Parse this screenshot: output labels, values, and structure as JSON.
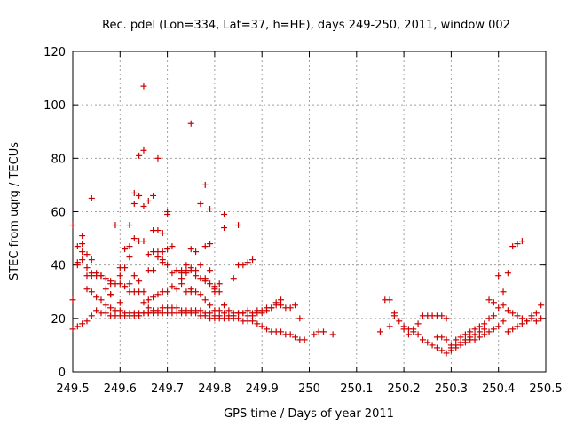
{
  "chart_data": {
    "type": "scatter",
    "title": "Rec. pdel (Lon=334, Lat=37, h=HE), days 249-250, 2011, window 002",
    "xlabel": "GPS time / Days of year 2011",
    "ylabel": "STEC from uqrg / TECUs",
    "xlim": [
      249.5,
      250.5
    ],
    "ylim": [
      0,
      120
    ],
    "xticks": [
      "249.5",
      "249.6",
      "249.7",
      "249.8",
      "249.9",
      "250",
      "250.1",
      "250.2",
      "250.3",
      "250.4",
      "250.5"
    ],
    "yticks": [
      "0",
      "20",
      "40",
      "60",
      "80",
      "100",
      "120"
    ],
    "grid": true,
    "marker_color": "#cc0000",
    "series": [
      {
        "x": [
          249.5,
          249.51,
          249.52,
          249.53,
          249.54,
          249.55,
          249.56,
          249.57,
          249.58,
          249.59,
          249.6,
          249.61,
          249.62,
          249.63,
          249.64,
          249.65,
          249.66,
          249.67,
          249.68,
          249.69,
          249.7,
          249.71,
          249.72,
          249.73,
          249.74,
          249.75,
          249.76,
          249.77,
          249.78,
          249.79,
          249.8,
          249.81,
          249.82,
          249.83,
          249.84,
          249.85,
          249.86,
          249.87,
          249.88,
          249.89,
          249.9,
          249.91,
          249.92,
          249.93,
          249.94,
          249.95,
          249.96,
          249.97,
          249.98,
          249.99,
          249.5,
          249.51,
          249.52,
          249.53,
          249.54,
          249.55,
          249.56,
          249.57,
          249.58,
          249.59,
          249.6,
          249.61,
          249.62,
          249.63,
          249.64,
          249.65,
          249.66,
          249.67,
          249.68,
          249.69,
          249.7,
          249.71,
          249.72,
          249.73,
          249.74,
          249.75,
          249.76,
          249.77,
          249.78,
          249.79,
          249.8,
          249.81,
          249.82,
          249.83,
          249.84,
          249.85,
          249.86,
          249.87,
          249.88,
          249.89,
          249.9,
          249.91,
          249.92,
          249.93,
          249.94,
          249.95,
          249.96,
          249.97,
          249.98,
          249.51,
          249.52,
          249.53,
          249.54,
          249.55,
          249.56,
          249.57,
          249.58,
          249.59,
          249.6,
          249.61,
          249.62,
          249.63,
          249.64,
          249.65,
          249.66,
          249.67,
          249.68,
          249.69,
          249.7,
          249.71,
          249.72,
          249.73,
          249.74,
          249.75,
          249.76,
          249.77,
          249.78,
          249.79,
          249.8,
          249.81,
          249.82,
          249.83,
          249.84,
          249.85,
          249.86,
          249.87,
          249.88,
          249.89,
          249.9,
          249.91,
          249.92,
          249.93,
          249.94,
          249.52,
          249.54,
          249.57,
          249.59,
          249.61,
          249.62,
          249.63,
          249.64,
          249.65,
          249.66,
          249.67,
          249.68,
          249.69,
          249.7,
          249.71,
          249.72,
          249.73,
          249.74,
          249.75,
          249.76,
          249.77,
          249.78,
          249.79,
          249.8,
          249.81,
          249.82,
          249.5,
          249.51,
          249.52,
          249.53,
          249.54,
          249.56,
          249.58,
          249.6,
          249.61,
          249.62,
          249.63,
          249.64,
          249.65,
          249.66,
          249.67,
          249.68,
          249.69,
          249.7,
          249.71,
          249.72,
          249.73,
          249.74,
          249.75,
          249.76,
          249.77,
          249.78,
          249.79,
          249.8,
          249.81,
          249.82,
          249.84,
          249.85,
          249.86,
          249.87,
          249.88,
          249.53,
          249.55,
          249.58,
          249.6,
          249.62,
          249.63,
          249.64,
          249.65,
          249.66,
          249.67,
          249.68,
          249.69,
          249.7,
          249.72,
          249.73,
          249.74,
          249.75,
          249.76,
          249.78,
          249.79,
          249.8,
          249.54,
          249.58,
          249.6,
          249.62,
          249.63,
          249.64,
          249.65,
          249.66,
          249.67,
          249.68,
          249.69,
          249.7,
          249.75,
          249.77,
          249.78,
          249.79,
          249.82,
          249.85,
          249.65,
          249.75,
          250.01,
          250.02,
          250.03,
          250.05,
          250.15,
          250.16,
          250.17,
          250.18,
          250.19,
          250.2,
          250.21,
          250.22,
          250.23,
          250.24,
          250.25,
          250.26,
          250.27,
          250.28,
          250.29,
          250.3,
          250.31,
          250.32,
          250.33,
          250.34,
          250.35,
          250.36,
          250.37,
          250.38,
          250.39,
          250.4,
          250.41,
          250.42,
          250.43,
          250.44,
          250.45,
          250.46,
          250.47,
          250.48,
          250.49,
          250.2,
          250.21,
          250.22,
          250.23,
          250.24,
          250.25,
          250.26,
          250.27,
          250.28,
          250.29,
          250.3,
          250.31,
          250.32,
          250.33,
          250.34,
          250.35,
          250.36,
          250.37,
          250.38,
          250.39,
          250.4,
          250.41,
          250.42,
          250.43,
          250.44,
          250.45,
          250.46,
          250.47,
          250.48,
          250.49,
          250.17,
          250.18,
          250.27,
          250.28,
          250.29,
          250.3,
          250.31,
          250.32,
          250.33,
          250.34,
          250.35,
          250.36,
          250.37,
          250.38,
          250.39,
          250.4,
          250.41,
          250.42,
          250.43,
          250.44,
          250.45
        ],
        "y": [
          16,
          17,
          18,
          19,
          21,
          23,
          22,
          22,
          21,
          21,
          21,
          21,
          21,
          21,
          21,
          22,
          22,
          22,
          22,
          22,
          22,
          22,
          22,
          22,
          22,
          22,
          22,
          21,
          21,
          20,
          20,
          20,
          20,
          20,
          20,
          20,
          19,
          19,
          19,
          18,
          17,
          16,
          15,
          15,
          15,
          14,
          14,
          13,
          12,
          12,
          27,
          40,
          42,
          31,
          30,
          28,
          27,
          25,
          24,
          23,
          23,
          22,
          22,
          22,
          22,
          22,
          22,
          23,
          23,
          24,
          24,
          24,
          24,
          23,
          23,
          23,
          23,
          23,
          22,
          22,
          21,
          21,
          22,
          21,
          21,
          22,
          22,
          23,
          22,
          23,
          23,
          24,
          24,
          25,
          25,
          24,
          24,
          25,
          20,
          41,
          48,
          39,
          37,
          37,
          36,
          35,
          34,
          33,
          33,
          32,
          30,
          30,
          34,
          26,
          27,
          28,
          29,
          30,
          30,
          32,
          31,
          33,
          30,
          31,
          30,
          29,
          27,
          25,
          23,
          23,
          25,
          23,
          22,
          22,
          22,
          21,
          21,
          22,
          22,
          23,
          24,
          26,
          27,
          51,
          65,
          31,
          55,
          46,
          47,
          63,
          66,
          62,
          64,
          66,
          53,
          52,
          59,
          47,
          38,
          37,
          38,
          38,
          36,
          35,
          34,
          33,
          31,
          30,
          25,
          55,
          47,
          45,
          44,
          42,
          36,
          33,
          36,
          39,
          43,
          50,
          30,
          49,
          38,
          38,
          45,
          45,
          46,
          37,
          38,
          38,
          40,
          39,
          38,
          40,
          35,
          38,
          32,
          33,
          59,
          35,
          55,
          40,
          41,
          42,
          36,
          36,
          29,
          39,
          55,
          36,
          49,
          30,
          44,
          53,
          43,
          42,
          40,
          38,
          35,
          37,
          30,
          45,
          47,
          48,
          30,
          36,
          29,
          26,
          33,
          67,
          81,
          83,
          24,
          45,
          80,
          41,
          60,
          93,
          63,
          70,
          61,
          54,
          40,
          107,
          46,
          14,
          15,
          15,
          14,
          15,
          27,
          17,
          22,
          19,
          17,
          16,
          16,
          14,
          12,
          11,
          10,
          9,
          8,
          7,
          8,
          9,
          10,
          11,
          12,
          12,
          13,
          14,
          15,
          16,
          17,
          19,
          15,
          16,
          17,
          18,
          19,
          20,
          19,
          20,
          16,
          14,
          15,
          18,
          21,
          21,
          21,
          21,
          21,
          20,
          9,
          10,
          11,
          12,
          13,
          14,
          15,
          16,
          20,
          21,
          24,
          25,
          23,
          22,
          21,
          20,
          19,
          21,
          22,
          25,
          27,
          21,
          13,
          13,
          12,
          10,
          12,
          13,
          14,
          15,
          16,
          17,
          18,
          27,
          26,
          36,
          30,
          37,
          47,
          48,
          49
        ]
      }
    ]
  }
}
